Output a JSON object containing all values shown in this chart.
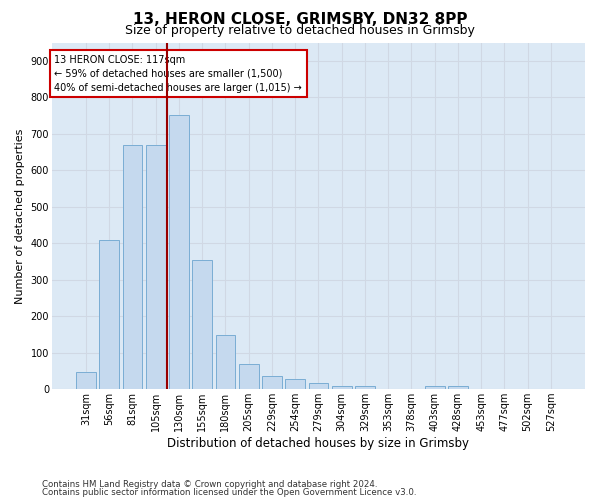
{
  "title1": "13, HERON CLOSE, GRIMSBY, DN32 8PP",
  "title2": "Size of property relative to detached houses in Grimsby",
  "xlabel": "Distribution of detached houses by size in Grimsby",
  "ylabel": "Number of detached properties",
  "categories": [
    "31sqm",
    "56sqm",
    "81sqm",
    "105sqm",
    "130sqm",
    "155sqm",
    "180sqm",
    "205sqm",
    "229sqm",
    "254sqm",
    "279sqm",
    "304sqm",
    "329sqm",
    "353sqm",
    "378sqm",
    "403sqm",
    "428sqm",
    "453sqm",
    "477sqm",
    "502sqm",
    "527sqm"
  ],
  "values": [
    48,
    410,
    670,
    670,
    750,
    355,
    148,
    70,
    35,
    28,
    18,
    10,
    10,
    0,
    0,
    8,
    10,
    0,
    0,
    0,
    0
  ],
  "bar_color": "#c5d9ee",
  "bar_edge_color": "#7aadd4",
  "vline_color": "#990000",
  "annotation_text": "13 HERON CLOSE: 117sqm\n← 59% of detached houses are smaller (1,500)\n40% of semi-detached houses are larger (1,015) →",
  "annotation_box_color": "#cc0000",
  "ylim": [
    0,
    950
  ],
  "yticks": [
    0,
    100,
    200,
    300,
    400,
    500,
    600,
    700,
    800,
    900
  ],
  "grid_color": "#d0d8e4",
  "bg_color": "#dce9f5",
  "footer_line1": "Contains HM Land Registry data © Crown copyright and database right 2024.",
  "footer_line2": "Contains public sector information licensed under the Open Government Licence v3.0.",
  "title_fontsize": 11,
  "subtitle_fontsize": 9,
  "ylabel_fontsize": 8,
  "xlabel_fontsize": 8.5,
  "tick_fontsize": 7,
  "annotation_fontsize": 7,
  "bar_width": 0.85,
  "vline_pos": 3.48
}
